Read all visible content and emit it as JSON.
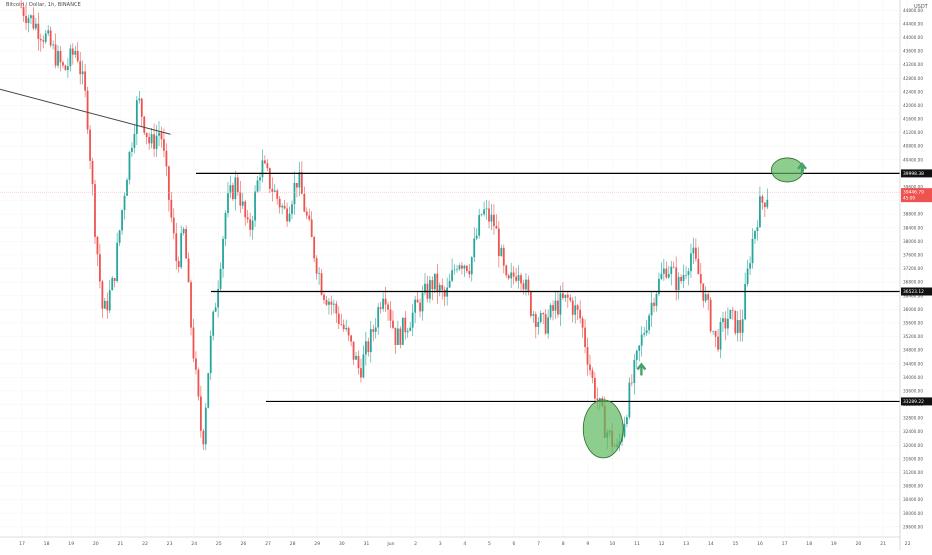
{
  "header": {
    "symbol": "Bitcoin / Dollar, 1h, BINANCE",
    "currency": "USDT"
  },
  "colors": {
    "up": "#26a69a",
    "down": "#ef5350",
    "level_line": "#000000",
    "trendline": "#444444",
    "ellipse_fill": "#5cb85c",
    "arrow": "#46a36a",
    "price_badge": "#ef5350",
    "grid": "#f4f4f4",
    "axis_text": "#555555"
  },
  "chart_data": {
    "type": "candlestick",
    "title": "",
    "xlabel": "",
    "ylabel": "",
    "ylim": [
      29300,
      45100
    ],
    "y_ticks": [
      "45200.00",
      "44800.00",
      "44400.00",
      "44000.00",
      "43600.00",
      "43200.00",
      "42800.00",
      "42400.00",
      "42000.00",
      "41600.00",
      "41200.00",
      "40800.00",
      "40400.00",
      "40000.00",
      "39600.00",
      "39200.00",
      "38800.00",
      "38400.00",
      "38000.00",
      "37600.00",
      "37200.00",
      "36800.00",
      "36400.00",
      "36000.00",
      "35600.00",
      "35200.00",
      "34800.00",
      "34400.00",
      "34000.00",
      "33600.00",
      "33200.00",
      "32800.00",
      "32400.00",
      "32000.00",
      "31600.00",
      "31200.00",
      "30800.00",
      "30400.00",
      "30000.00",
      "29600.00"
    ],
    "x_ticks": [
      "17",
      "18",
      "19",
      "20",
      "21",
      "22",
      "23",
      "24",
      "25",
      "26",
      "27",
      "28",
      "29",
      "30",
      "31",
      "Jun",
      "2",
      "3",
      "4",
      "5",
      "6",
      "7",
      "8",
      "9",
      "10",
      "11",
      "12",
      "13",
      "14",
      "15",
      "16",
      "17",
      "18",
      "19",
      "20",
      "21",
      "22",
      "23"
    ],
    "levels": [
      {
        "label": "39998.38",
        "price": 39998.38
      },
      {
        "label": "36523.12",
        "price": 36523.12
      },
      {
        "label": "33289.22",
        "price": 33289.22
      }
    ],
    "current_price": {
      "label": "39446.79",
      "sub": "45:09",
      "value": 39446.79
    },
    "trendline": {
      "from": {
        "date": "May 16",
        "price": 42500
      },
      "to": {
        "date": "May 22",
        "price": 41150
      }
    },
    "annotations": [
      {
        "kind": "ellipse",
        "date": "Jun 15",
        "price": 40100
      },
      {
        "kind": "up-arrow",
        "date": "Jun 16",
        "price": 40100
      },
      {
        "kind": "ellipse",
        "date": "Jun 8",
        "price": 32600
      },
      {
        "kind": "up-arrow",
        "date": "Jun 10",
        "price": 34200
      }
    ],
    "price_path": [
      [
        "May 16",
        44900
      ],
      [
        "May 17",
        44000
      ],
      [
        "May 18",
        43000
      ],
      [
        "May 18",
        43700
      ],
      [
        "May 19",
        42000
      ],
      [
        "May 19",
        38500
      ],
      [
        "May 19",
        35800
      ],
      [
        "May 20",
        36800
      ],
      [
        "May 20",
        39800
      ],
      [
        "May 21",
        42200
      ],
      [
        "May 21",
        40800
      ],
      [
        "May 22",
        41300
      ],
      [
        "May 22",
        39300
      ],
      [
        "May 22",
        37300
      ],
      [
        "May 23",
        38300
      ],
      [
        "May 23",
        35800
      ],
      [
        "May 23",
        33800
      ],
      [
        "May 23",
        32000
      ],
      [
        "May 24",
        34800
      ],
      [
        "May 24",
        36800
      ],
      [
        "May 24",
        39000
      ],
      [
        "May 25",
        39800
      ],
      [
        "May 25",
        38200
      ],
      [
        "May 26",
        40300
      ],
      [
        "May 26",
        39500
      ],
      [
        "May 27",
        38800
      ],
      [
        "May 27",
        39900
      ],
      [
        "May 28",
        38200
      ],
      [
        "May 28",
        36600
      ],
      [
        "May 29",
        36000
      ],
      [
        "May 29",
        35200
      ],
      [
        "May 30",
        34200
      ],
      [
        "May 30",
        35200
      ],
      [
        "May 31",
        36700
      ],
      [
        "May 31",
        35100
      ],
      [
        "Jun 1",
        36800
      ],
      [
        "Jun 1",
        36300
      ],
      [
        "Jun 2",
        37500
      ],
      [
        "Jun 2",
        37300
      ],
      [
        "Jun 3",
        38900
      ],
      [
        "Jun 3",
        38500
      ],
      [
        "Jun 4",
        36600
      ],
      [
        "Jun 4",
        37300
      ],
      [
        "Jun 5",
        36000
      ],
      [
        "Jun 5",
        35500
      ],
      [
        "Jun 6",
        36100
      ],
      [
        "Jun 6",
        36300
      ],
      [
        "Jun 7",
        35700
      ],
      [
        "Jun 7",
        33800
      ],
      [
        "Jun 8",
        32500
      ],
      [
        "Jun 8",
        31800
      ],
      [
        "Jun 9",
        33600
      ],
      [
        "Jun 9",
        35200
      ],
      [
        "Jun 10",
        36500
      ],
      [
        "Jun 10",
        37300
      ],
      [
        "Jun 11",
        36700
      ],
      [
        "Jun 11",
        37700
      ],
      [
        "Jun 12",
        36500
      ],
      [
        "Jun 12",
        35000
      ],
      [
        "Jun 13",
        35800
      ],
      [
        "Jun 13",
        35400
      ],
      [
        "Jun 14",
        37800
      ],
      [
        "Jun 14",
        39000
      ],
      [
        "Jun 14",
        39400
      ]
    ]
  }
}
